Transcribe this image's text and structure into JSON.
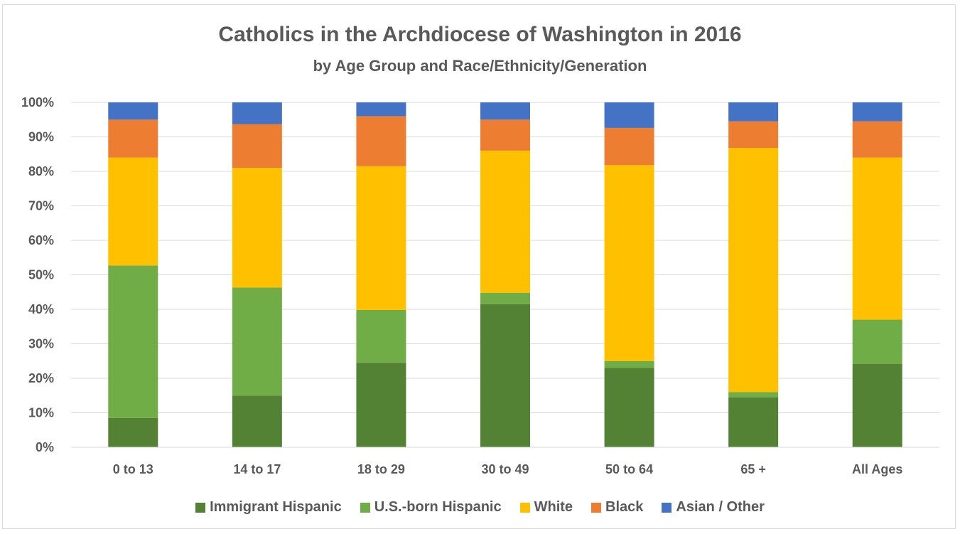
{
  "chart_data": {
    "type": "bar",
    "stacked": true,
    "title": "Catholics in the Archdiocese of Washington in 2016",
    "subtitle": "by Age Group and Race/Ethnicity/Generation",
    "categories": [
      "0 to 13",
      "14 to 17",
      "18 to 29",
      "30 to 49",
      "50 to 64",
      "65 +",
      "All Ages"
    ],
    "ylim": [
      0,
      100
    ],
    "y_ticks": [
      "0%",
      "10%",
      "20%",
      "30%",
      "40%",
      "50%",
      "60%",
      "70%",
      "80%",
      "90%",
      "100%"
    ],
    "grid": true,
    "legend_position": "bottom",
    "series": [
      {
        "name": "Immigrant Hispanic",
        "color": "#548235",
        "values": [
          8.5,
          15.0,
          24.5,
          41.5,
          23.0,
          14.5,
          24.2
        ]
      },
      {
        "name": "U.S.-born Hispanic",
        "color": "#70ad47",
        "values": [
          44.2,
          31.3,
          15.3,
          3.3,
          2.0,
          1.5,
          12.8
        ]
      },
      {
        "name": "White",
        "color": "#ffc000",
        "values": [
          31.3,
          34.7,
          41.7,
          41.2,
          56.8,
          70.8,
          47.0
        ]
      },
      {
        "name": "Black",
        "color": "#ed7d31",
        "values": [
          11.0,
          12.7,
          14.5,
          9.0,
          10.8,
          7.7,
          10.5
        ]
      },
      {
        "name": "Asian / Other",
        "color": "#4472c4",
        "values": [
          5.0,
          6.3,
          4.0,
          5.0,
          7.4,
          5.5,
          5.5
        ]
      }
    ]
  }
}
